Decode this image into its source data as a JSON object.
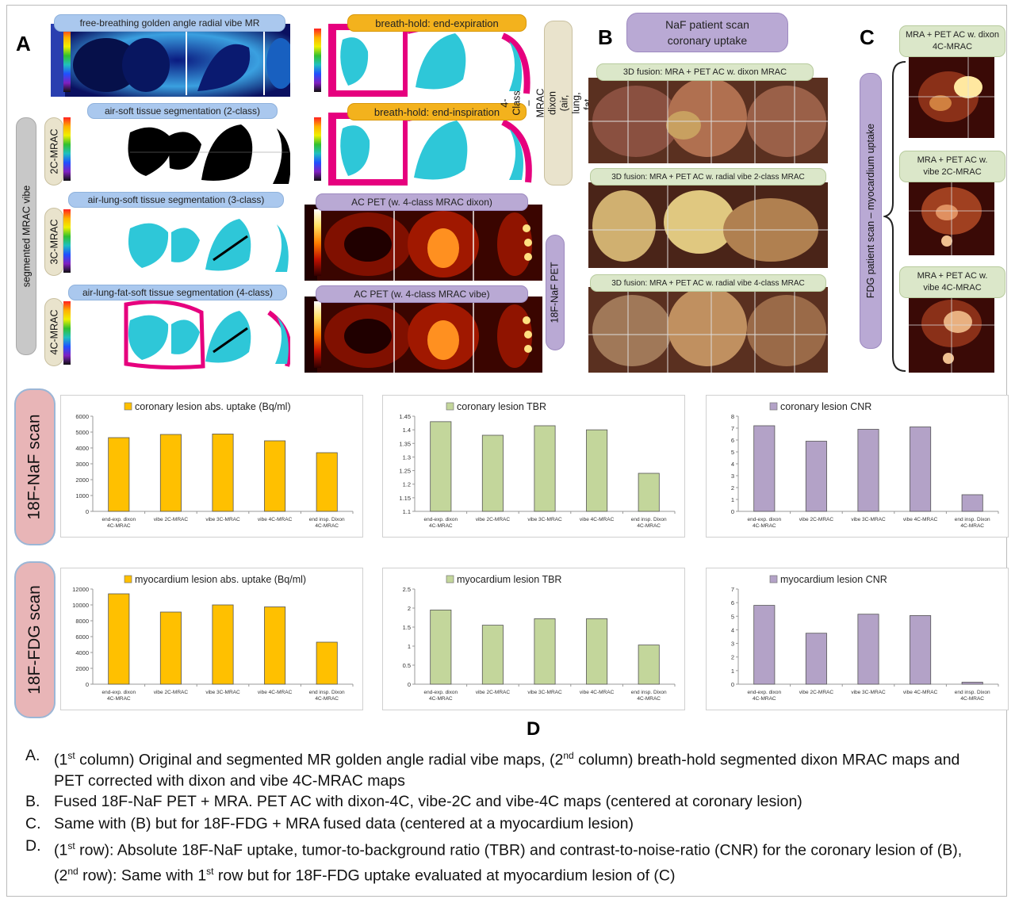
{
  "letters": {
    "a": "A",
    "b": "B",
    "c": "C",
    "d": "D"
  },
  "panel_a": {
    "col1_titles": [
      "free-breathing golden angle radial vibe MR",
      "air-soft tissue segmentation (2-class)",
      "air-lung-soft tissue segmentation (3-class)",
      "air-lung-fat-soft tissue segmentation (4-class)"
    ],
    "col2_titles": [
      "breath-hold: end-expiration",
      "breath-hold: end-inspiration",
      "AC PET (w. 4-class MRAC dixon)",
      "AC PET (w. 4-class MRAC vibe)"
    ],
    "row_labels": [
      "2C-MRAC",
      "3C-MRAC",
      "4C-MRAC"
    ],
    "side_left": "segmented MRAC vibe",
    "side_right_top": "4-Class –MRAC dixon (air, lung, fat, soft tissue)",
    "side_right_bottom": "18F-NaF PET"
  },
  "panel_b": {
    "title": "NaF patient scan coronary uptake",
    "labels": [
      "3D fusion: MRA + PET AC w. dixon MRAC",
      "3D fusion: MRA + PET AC w. radial vibe 2-class MRAC",
      "3D fusion: MRA + PET AC w. radial vibe 4-class MRAC"
    ]
  },
  "panel_c": {
    "side": "FDG patient scan – myocardium uptake",
    "labels": [
      "MRA + PET AC w. dixon 4C-MRAC",
      "MRA + PET AC w. vibe 2C-MRAC",
      "MRA + PET AC w. vibe 4C-MRAC"
    ]
  },
  "row_labels_d": [
    "18F-NaF scan",
    "18F-FDG scan"
  ],
  "chart_data": [
    {
      "type": "bar",
      "title": "coronary lesion abs. uptake (Bq/ml)",
      "categories": [
        "end-exp. dixon 4C-MRAC",
        "vibe 2C-MRAC",
        "vibe 3C-MRAC",
        "vibe 4C-MRAC",
        "end insp. Dixon 4C-MRAC"
      ],
      "values": [
        4650,
        4850,
        4880,
        4450,
        3700
      ],
      "ylim": [
        0,
        6000
      ],
      "yticks": [
        "0",
        "1000",
        "2000",
        "3000",
        "4000",
        "5000",
        "6000"
      ],
      "color": "#ffc000",
      "legend": "top"
    },
    {
      "type": "bar",
      "title": "coronary lesion TBR",
      "categories": [
        "end-exp. dixon 4C-MRAC",
        "vibe 2C-MRAC",
        "vibe 3C-MRAC",
        "vibe 4C-MRAC",
        "end insp. Dixon 4C-MRAC"
      ],
      "values": [
        1.43,
        1.38,
        1.415,
        1.4,
        1.24
      ],
      "ylim": [
        1.1,
        1.45
      ],
      "yticks": [
        "1.1",
        "1.15",
        "1.2",
        "1.25",
        "1.3",
        "1.35",
        "1.4",
        "1.45"
      ],
      "color": "#c3d69b",
      "legend": "top"
    },
    {
      "type": "bar",
      "title": "coronary lesion CNR",
      "categories": [
        "end-exp. dixon 4C-MRAC",
        "vibe 2C-MRAC",
        "vibe 3C-MRAC",
        "vibe 4C-MRAC",
        "end insp. Dixon 4C-MRAC"
      ],
      "values": [
        7.2,
        5.9,
        6.9,
        7.1,
        1.4
      ],
      "ylim": [
        0,
        8
      ],
      "yticks": [
        "0",
        "1",
        "2",
        "3",
        "4",
        "5",
        "6",
        "7",
        "8"
      ],
      "color": "#b3a2c7",
      "legend": "top"
    },
    {
      "type": "bar",
      "title": "myocardium lesion abs. uptake (Bq/ml)",
      "categories": [
        "end-exp. dixon 4C-MRAC",
        "vibe 2C-MRAC",
        "vibe 3C-MRAC",
        "vibe 4C-MRAC",
        "end insp. Dixon 4C-MRAC"
      ],
      "values": [
        11400,
        9100,
        10000,
        9750,
        5300
      ],
      "ylim": [
        0,
        12000
      ],
      "yticks": [
        "0",
        "2000",
        "4000",
        "6000",
        "8000",
        "10000",
        "12000"
      ],
      "color": "#ffc000",
      "legend": "top"
    },
    {
      "type": "bar",
      "title": "myocardium lesion TBR",
      "categories": [
        "end-exp. dixon 4C-MRAC",
        "vibe 2C-MRAC",
        "vibe 3C-MRAC",
        "vibe 4C-MRAC",
        "end insp. Dixon 4C-MRAC"
      ],
      "values": [
        1.95,
        1.55,
        1.72,
        1.72,
        1.03
      ],
      "ylim": [
        0,
        2.5
      ],
      "yticks": [
        "0",
        "0.5",
        "1",
        "1.5",
        "2",
        "2.5"
      ],
      "color": "#c3d69b",
      "legend": "top"
    },
    {
      "type": "bar",
      "title": "myocardium lesion CNR",
      "categories": [
        "end-exp. dixon 4C-MRAC",
        "vibe 2C-MRAC",
        "vibe 3C-MRAC",
        "vibe 4C-MRAC",
        "end insp. Dixon 4C-MRAC"
      ],
      "values": [
        5.8,
        3.75,
        5.15,
        5.05,
        0.15
      ],
      "ylim": [
        0,
        7
      ],
      "yticks": [
        "0",
        "1",
        "2",
        "3",
        "4",
        "5",
        "6",
        "7"
      ],
      "color": "#b3a2c7",
      "legend": "top"
    }
  ],
  "caption": [
    {
      "label": "A.",
      "html_parts": [
        "(1",
        "st",
        " column) Original and segmented MR golden angle radial vibe maps, (2",
        "nd",
        " column) breath-hold segmented dixon MRAC maps and PET corrected with dixon and vibe 4C-MRAC maps"
      ]
    },
    {
      "label": "B.",
      "text": "Fused 18F-NaF PET + MRA. PET AC with dixon-4C, vibe-2C and vibe-4C maps (centered at coronary lesion)"
    },
    {
      "label": "C.",
      "text": "Same with (B) but for 18F-FDG + MRA fused data (centered at a myocardium lesion)"
    },
    {
      "label": "D.",
      "html_parts": [
        "(1",
        "st",
        " row): Absolute 18F-NaF uptake, tumor-to-background ratio (TBR) and contrast-to-noise-ratio (CNR) for the coronary lesion of (B), (2",
        "nd",
        " row): Same with 1",
        "st",
        " row but for 18F-FDG uptake evaluated at myocardium lesion of (C)"
      ]
    }
  ]
}
